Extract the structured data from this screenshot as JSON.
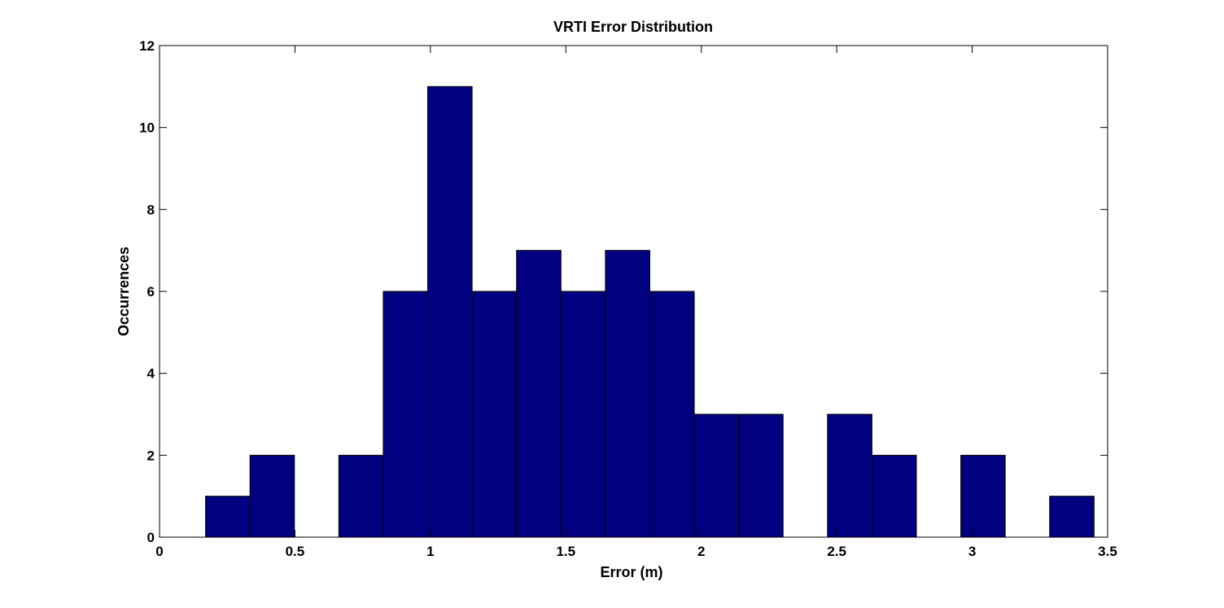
{
  "chart_data": {
    "type": "bar",
    "title": "VRTI Error Distribution",
    "xlabel": "Error (m)",
    "ylabel": "Occurrences",
    "xlim": [
      0,
      3.5
    ],
    "ylim": [
      0,
      12
    ],
    "xticks": [
      "0",
      "0.5",
      "1",
      "1.5",
      "2",
      "2.5",
      "3",
      "3.5"
    ],
    "yticks": [
      "0",
      "2",
      "4",
      "6",
      "8",
      "10",
      "12"
    ],
    "grid": false,
    "bar_color": "#000080",
    "bin_edges": [
      0.17,
      0.334,
      0.498,
      0.662,
      0.826,
      0.99,
      1.154,
      1.318,
      1.482,
      1.646,
      1.81,
      1.974,
      2.138,
      2.302,
      2.466,
      2.63,
      2.794,
      2.958,
      3.122,
      3.286,
      3.45
    ],
    "values": [
      1,
      2,
      0,
      2,
      6,
      11,
      6,
      7,
      6,
      7,
      6,
      3,
      3,
      0,
      3,
      2,
      0,
      2,
      0,
      1
    ]
  }
}
